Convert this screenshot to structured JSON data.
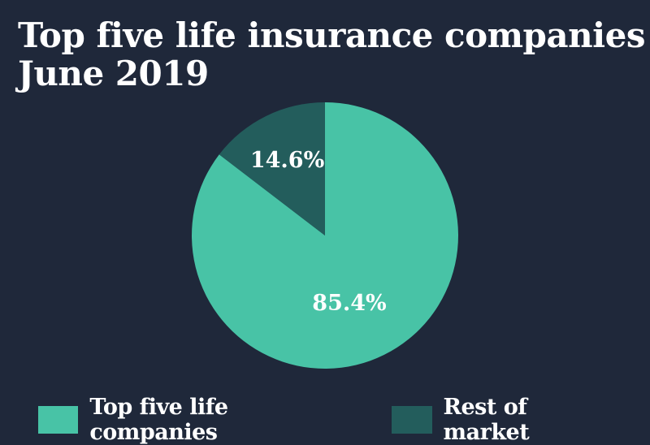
{
  "chart_data": {
    "type": "pie",
    "title_lines": [
      "Top five life insurance companies",
      "June 2019"
    ],
    "slices": [
      {
        "label": "Top five life companies",
        "value": 85.4,
        "display": "85.4%",
        "color": "#48c3a6"
      },
      {
        "label": "Rest of market",
        "value": 14.6,
        "display": "14.6%",
        "color": "#235d5c"
      }
    ],
    "start_angle": "top, clockwise",
    "legend_position": "bottom"
  }
}
